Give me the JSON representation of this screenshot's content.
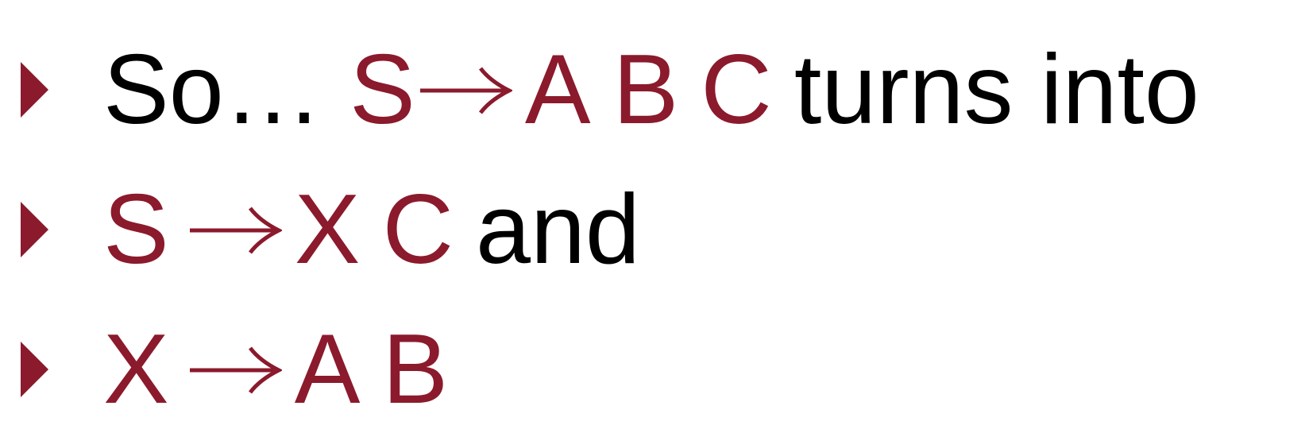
{
  "slide": {
    "colors": {
      "accent": "#8b1a2c",
      "text": "#000000",
      "background": "#ffffff"
    },
    "lines": [
      {
        "lead": "So… ",
        "lhs": "S",
        "rhs": [
          "A",
          "B",
          "C"
        ],
        "tail": "turns into"
      },
      {
        "lhs": "S",
        "rhs": [
          "X",
          "C"
        ],
        "tail": "and"
      },
      {
        "lhs": "X",
        "rhs": [
          "A",
          "B"
        ],
        "tail": ""
      }
    ],
    "marker_icon": "triangle-right-icon",
    "arrow_icon": "right-arrow-icon"
  }
}
